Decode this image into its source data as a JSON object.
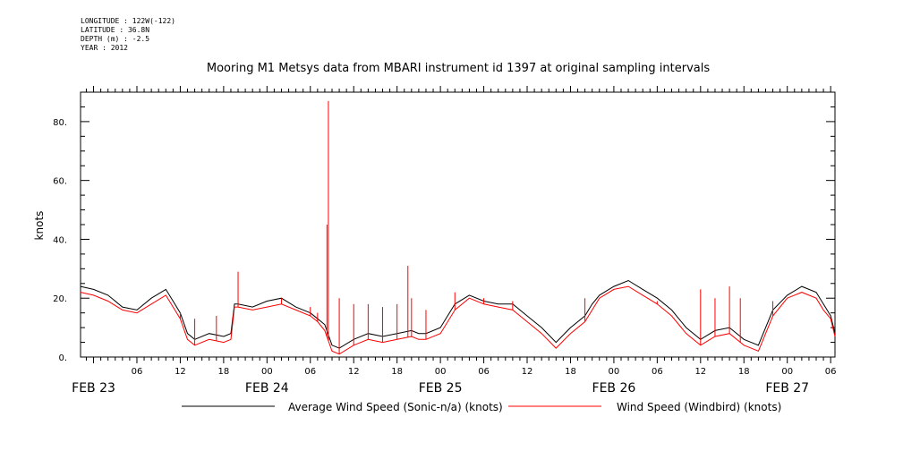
{
  "metadata": {
    "longitude": "LONGITUDE : 122W(-122)",
    "latitude": "LATITUDE : 36.8N",
    "depth": "DEPTH (m) : -2.5",
    "year": "YEAR : 2012"
  },
  "chart_data": {
    "type": "line",
    "title": "Mooring M1 Metsys data from MBARI instrument id 1397 at original sampling intervals",
    "ylabel": "knots",
    "xlabel": "",
    "ylim": [
      0,
      90
    ],
    "yticks": [
      "0.",
      "20.",
      "40.",
      "60.",
      "80."
    ],
    "x_hour_ticks": [
      "06",
      "12",
      "18",
      "00",
      "06",
      "12",
      "18",
      "00",
      "06",
      "12",
      "18",
      "00",
      "06",
      "12",
      "18",
      "00",
      "06"
    ],
    "x_date_labels": [
      "FEB 23",
      "FEB 24",
      "FEB 25",
      "FEB 26",
      "FEB 27"
    ],
    "x_unit": "hours since 2012-02-23 00:00",
    "xlim": [
      -1.8,
      102.6
    ],
    "grid": false,
    "legend_position": "bottom",
    "series": [
      {
        "name": "Average Wind Speed (Sonic-n/a) (knots)",
        "color": "#000000",
        "x": [
          -1.8,
          0,
          2,
          4,
          6,
          8,
          10,
          11,
          12,
          13,
          14,
          16,
          18,
          19,
          19.5,
          20,
          22,
          24,
          26,
          28,
          30,
          31,
          32,
          33,
          34,
          36,
          38,
          40,
          42,
          44,
          45,
          46,
          48,
          50,
          52,
          54,
          56,
          58,
          60,
          62,
          64,
          66,
          68,
          69,
          70,
          72,
          74,
          76,
          78,
          80,
          82,
          84,
          86,
          88,
          90,
          91,
          92,
          94,
          96,
          98,
          100,
          101,
          102,
          102.6
        ],
        "y": [
          24,
          23,
          21,
          17,
          16,
          20,
          23,
          19,
          15,
          8,
          6,
          8,
          7,
          8,
          18,
          18,
          17,
          19,
          20,
          17,
          15,
          13,
          11,
          4,
          3,
          6,
          8,
          7,
          8,
          9,
          8,
          8,
          10,
          18,
          21,
          19,
          18,
          18,
          14,
          10,
          5,
          10,
          14,
          18,
          21,
          24,
          26,
          23,
          20,
          16,
          10,
          6,
          9,
          10,
          6,
          5,
          4,
          16,
          21,
          24,
          22,
          18,
          14,
          8
        ]
      },
      {
        "name": "Wind Speed (Windbird) (knots)",
        "color": "#ff0000",
        "x": [
          -1.8,
          0,
          2,
          4,
          6,
          8,
          10,
          11,
          12,
          13,
          14,
          16,
          18,
          19,
          19.5,
          20,
          22,
          24,
          26,
          28,
          30,
          31,
          32,
          33,
          34,
          36,
          38,
          40,
          42,
          44,
          45,
          46,
          48,
          50,
          52,
          54,
          56,
          58,
          60,
          62,
          64,
          66,
          68,
          69,
          70,
          72,
          74,
          76,
          78,
          80,
          82,
          84,
          86,
          88,
          90,
          91,
          92,
          94,
          96,
          98,
          100,
          101,
          102,
          102.6
        ],
        "y": [
          22,
          21,
          19,
          16,
          15,
          18,
          21,
          17,
          13,
          6,
          4,
          6,
          5,
          6,
          17,
          17,
          16,
          17,
          18,
          16,
          14,
          12,
          9,
          2,
          1,
          4,
          6,
          5,
          6,
          7,
          6,
          6,
          8,
          16,
          20,
          18,
          17,
          16,
          12,
          8,
          3,
          8,
          12,
          16,
          20,
          23,
          24,
          21,
          18,
          14,
          8,
          4,
          7,
          8,
          4,
          3,
          2,
          14,
          20,
          22,
          20,
          16,
          13,
          7
        ]
      }
    ],
    "spikes": {
      "series": "Wind Speed (Windbird) (knots)",
      "x": [
        12,
        14,
        17,
        20,
        26,
        30,
        31,
        32.3,
        32.5,
        34,
        36,
        38,
        40,
        42,
        43.5,
        44,
        46,
        50,
        54,
        58,
        68,
        70,
        78,
        84,
        86,
        88,
        89.5,
        94
      ],
      "y": [
        15,
        13,
        14,
        29,
        20,
        17,
        15,
        45,
        87,
        20,
        18,
        18,
        17,
        18,
        31,
        20,
        16,
        22,
        20,
        19,
        20,
        20,
        19,
        23,
        20,
        24,
        20,
        19
      ]
    }
  }
}
